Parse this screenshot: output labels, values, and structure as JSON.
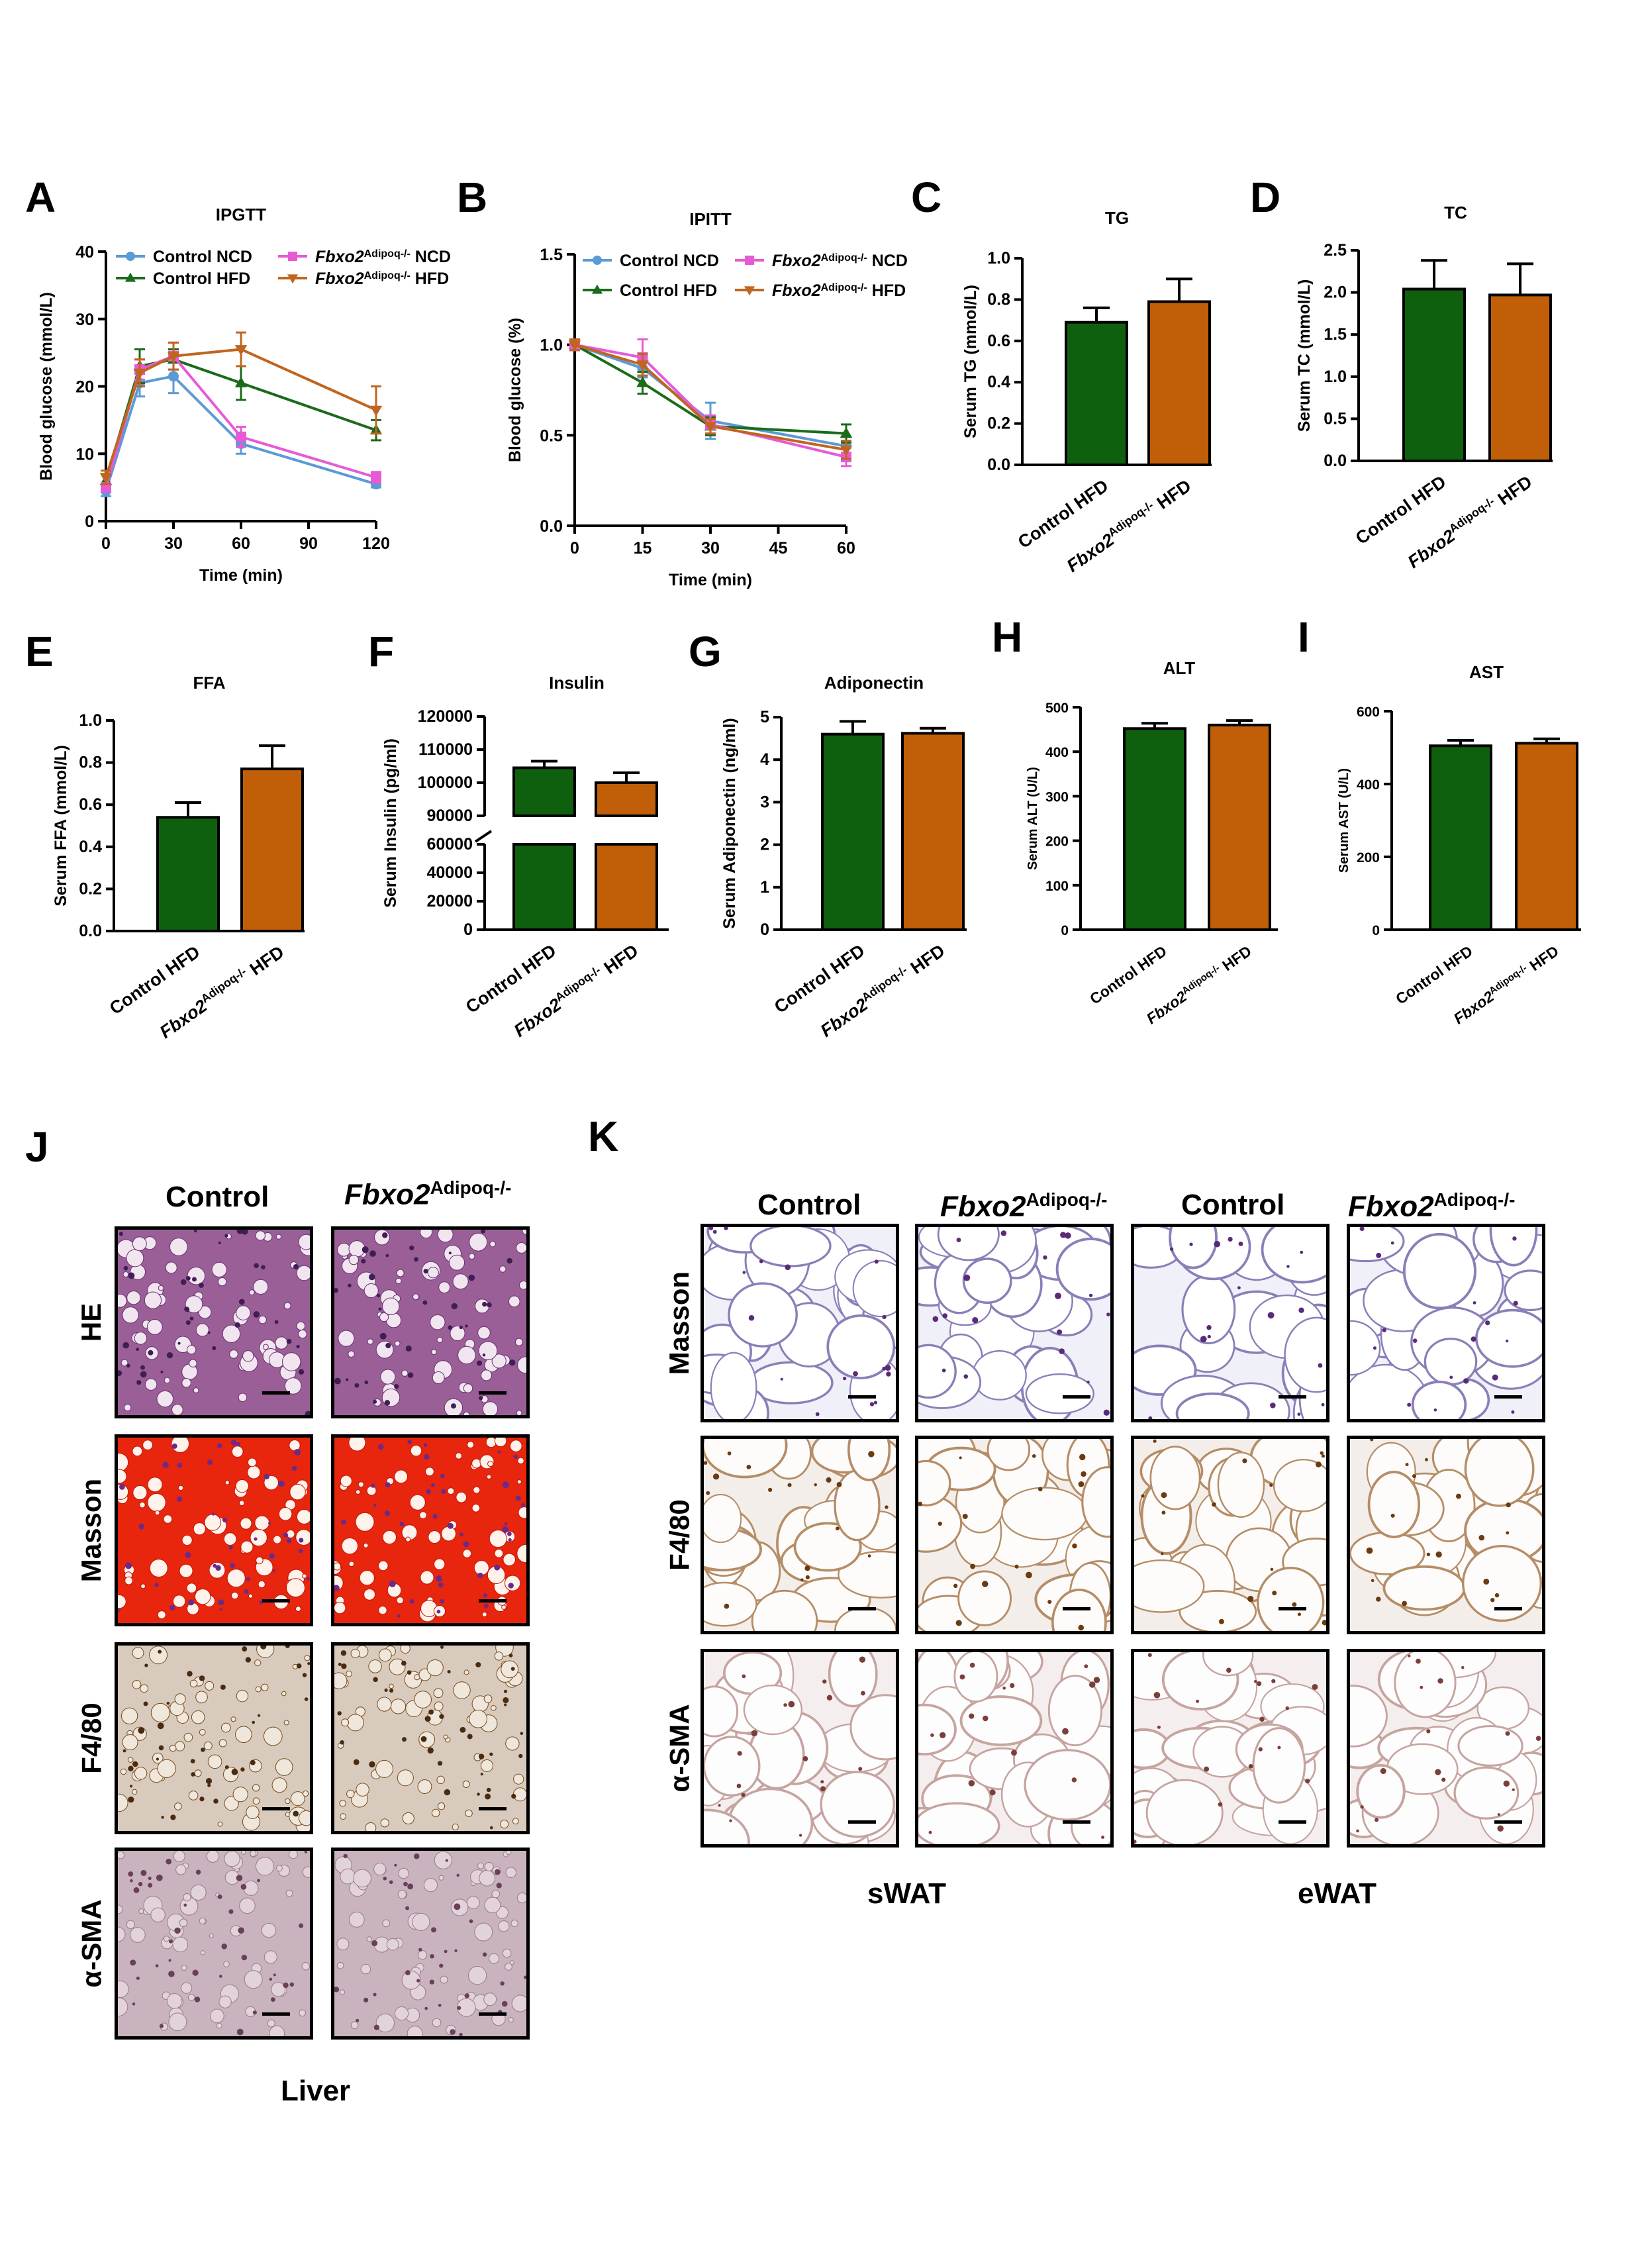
{
  "chart_data": [
    {
      "id": "A",
      "type": "line",
      "title": "IPGTT",
      "xlabel": "Time (min)",
      "ylabel": "Blood glucose (mmol/L)",
      "x": [
        0,
        15,
        30,
        60,
        120
      ],
      "xticks": [
        0,
        30,
        60,
        90,
        120
      ],
      "xlim": [
        0,
        120
      ],
      "yticks": [
        0,
        10,
        20,
        30,
        40
      ],
      "ylim": [
        0,
        40
      ],
      "series": [
        {
          "name": "Control NCD",
          "color": "#5b9bd5",
          "marker": "circle",
          "values": [
            4.5,
            20.5,
            21.5,
            11.5,
            5.5
          ],
          "err": [
            0.8,
            2.0,
            2.5,
            1.5,
            0.5
          ]
        },
        {
          "name": "Control HFD",
          "color": "#1a6b1a",
          "marker": "triangle-up",
          "values": [
            6.0,
            23.0,
            24.0,
            20.5,
            13.5
          ],
          "err": [
            1.0,
            2.5,
            1.5,
            2.5,
            1.5
          ]
        },
        {
          "name": "Fbxo2 NCD",
          "color": "#e75ad6",
          "marker": "square",
          "values": [
            5.0,
            22.5,
            24.5,
            12.5,
            6.5
          ],
          "err": [
            0.5,
            1.5,
            2.0,
            1.5,
            0.8
          ]
        },
        {
          "name": "Fbxo2 HFD",
          "color": "#c0651f",
          "marker": "triangle-down",
          "values": [
            6.5,
            22.0,
            24.5,
            25.5,
            16.5
          ],
          "err": [
            1.0,
            2.0,
            2.0,
            2.5,
            3.5
          ]
        }
      ],
      "legend": [
        {
          "italic": "",
          "sup": "",
          "plain": "Control NCD"
        },
        {
          "italic": "Fbxo2",
          "sup": "Adipoq-/-",
          "plain": " NCD"
        },
        {
          "italic": "",
          "sup": "",
          "plain": "Control HFD"
        },
        {
          "italic": "Fbxo2",
          "sup": "Adipoq-/-",
          "plain": " HFD"
        }
      ]
    },
    {
      "id": "B",
      "type": "line",
      "title": "IPITT",
      "xlabel": "Time (min)",
      "ylabel": "Blood glucose (%)",
      "x": [
        0,
        15,
        30,
        60
      ],
      "xticks": [
        0,
        15,
        30,
        45,
        60
      ],
      "xlim": [
        0,
        60
      ],
      "yticks": [
        0.0,
        0.5,
        1.0,
        1.5
      ],
      "ytick_labels": [
        "0.0",
        "0.5",
        "1.0",
        "1.5"
      ],
      "ylim": [
        0,
        1.5
      ],
      "series": [
        {
          "name": "Control NCD",
          "color": "#5b9bd5",
          "marker": "circle",
          "values": [
            1.0,
            0.87,
            0.58,
            0.44
          ],
          "err": [
            0.03,
            0.05,
            0.1,
            0.05
          ]
        },
        {
          "name": "Control HFD",
          "color": "#1a6b1a",
          "marker": "triangle-up",
          "values": [
            1.0,
            0.79,
            0.55,
            0.51
          ],
          "err": [
            0.03,
            0.06,
            0.05,
            0.05
          ]
        },
        {
          "name": "Fbxo2 NCD",
          "color": "#e75ad6",
          "marker": "square",
          "values": [
            1.0,
            0.93,
            0.56,
            0.38
          ],
          "err": [
            0.03,
            0.1,
            0.05,
            0.05
          ]
        },
        {
          "name": "Fbxo2 HFD",
          "color": "#c0651f",
          "marker": "triangle-down",
          "values": [
            1.0,
            0.89,
            0.55,
            0.42
          ],
          "err": [
            0.03,
            0.06,
            0.04,
            0.05
          ]
        }
      ],
      "legend": [
        {
          "italic": "",
          "sup": "",
          "plain": "Control NCD"
        },
        {
          "italic": "Fbxo2",
          "sup": "Adipoq-/-",
          "plain": " NCD"
        },
        {
          "italic": "",
          "sup": "",
          "plain": "Control HFD"
        },
        {
          "italic": "Fbxo2",
          "sup": "Adipoq-/-",
          "plain": " HFD"
        }
      ]
    },
    {
      "id": "C",
      "type": "bar",
      "title": "TG",
      "ylabel": "Serum TG (mmol/L)",
      "ylim": [
        0,
        1.0
      ],
      "yticks": [
        0.0,
        0.2,
        0.4,
        0.6,
        0.8,
        1.0
      ],
      "ytick_labels": [
        "0.0",
        "0.2",
        "0.4",
        "0.6",
        "0.8",
        "1.0"
      ],
      "values": [
        0.69,
        0.79
      ],
      "err": [
        0.07,
        0.11
      ]
    },
    {
      "id": "D",
      "type": "bar",
      "title": "TC",
      "ylabel": "Serum TC (mmol/L)",
      "ylim": [
        0,
        2.5
      ],
      "yticks": [
        0.0,
        0.5,
        1.0,
        1.5,
        2.0,
        2.5
      ],
      "ytick_labels": [
        "0.0",
        "0.5",
        "1.0",
        "1.5",
        "2.0",
        "2.5"
      ],
      "values": [
        2.04,
        1.97
      ],
      "err": [
        0.34,
        0.37
      ]
    },
    {
      "id": "E",
      "type": "bar",
      "title": "FFA",
      "ylabel": "Serum FFA (mmol/L)",
      "ylim": [
        0,
        1.0
      ],
      "yticks": [
        0.0,
        0.2,
        0.4,
        0.6,
        0.8,
        1.0
      ],
      "ytick_labels": [
        "0.0",
        "0.2",
        "0.4",
        "0.6",
        "0.8",
        "1.0"
      ],
      "values": [
        0.54,
        0.77
      ],
      "err": [
        0.07,
        0.11
      ]
    },
    {
      "id": "F",
      "type": "bar",
      "title": "Insulin",
      "ylabel": "Serum Insulin (pg/ml)",
      "broken_axis": true,
      "lower_ylim": [
        0,
        60000
      ],
      "lower_yticks": [
        0,
        20000,
        40000,
        60000
      ],
      "upper_ylim": [
        90000,
        120000
      ],
      "upper_yticks": [
        90000,
        100000,
        110000,
        120000
      ],
      "values": [
        104500,
        100000
      ],
      "err": [
        2000,
        3000
      ]
    },
    {
      "id": "G",
      "type": "bar",
      "title": "Adiponectin",
      "ylabel": "Serum Adiponectin (ng/ml)",
      "ylim": [
        0,
        5
      ],
      "yticks": [
        0,
        1,
        2,
        3,
        4,
        5
      ],
      "values": [
        4.6,
        4.62
      ],
      "err": [
        0.3,
        0.12
      ]
    },
    {
      "id": "H",
      "type": "bar",
      "title": "ALT",
      "ylabel": "Serum ALT (U/L)",
      "ylim": [
        0,
        500
      ],
      "yticks": [
        0,
        100,
        200,
        300,
        400,
        500
      ],
      "values": [
        452,
        460
      ],
      "err": [
        12,
        10
      ]
    },
    {
      "id": "I",
      "type": "bar",
      "title": "AST",
      "ylabel": "Serum AST (U/L)",
      "ylim": [
        0,
        600
      ],
      "yticks": [
        0,
        200,
        400,
        600
      ],
      "values": [
        505,
        512
      ],
      "err": [
        15,
        12
      ]
    }
  ],
  "groups": {
    "control": "Control HFD",
    "fbxo2_italic": "Fbxo2",
    "fbxo2_sup": "Adipoq-/-",
    "fbxo2_suffix": "HFD"
  },
  "colors": {
    "control": "#0e600e",
    "fbxo2": "#c05f08",
    "ncd_control": "#5b9bd5",
    "ncd_fbxo2": "#e75ad6"
  },
  "panel_letters": [
    "A",
    "B",
    "C",
    "D",
    "E",
    "F",
    "G",
    "H",
    "I",
    "J",
    "K"
  ],
  "histology_liver": {
    "columns": [
      {
        "plain": "Control",
        "italic": "",
        "sup": ""
      },
      {
        "plain": "",
        "italic": "Fbxo2",
        "sup": "Adipoq-/-"
      }
    ],
    "rows": [
      "HE",
      "Masson",
      "F4/80",
      "α-SMA"
    ],
    "footer": "Liver"
  },
  "histology_wat": {
    "columns": [
      {
        "plain": "Control",
        "italic": "",
        "sup": ""
      },
      {
        "plain": "",
        "italic": "Fbxo2",
        "sup": "Adipoq-/-"
      },
      {
        "plain": "Control",
        "italic": "",
        "sup": ""
      },
      {
        "plain": "",
        "italic": "Fbxo2",
        "sup": "Adipoq-/-"
      }
    ],
    "rows": [
      "Masson",
      "F4/80",
      "α-SMA"
    ],
    "footers": [
      "sWAT",
      "eWAT"
    ]
  }
}
